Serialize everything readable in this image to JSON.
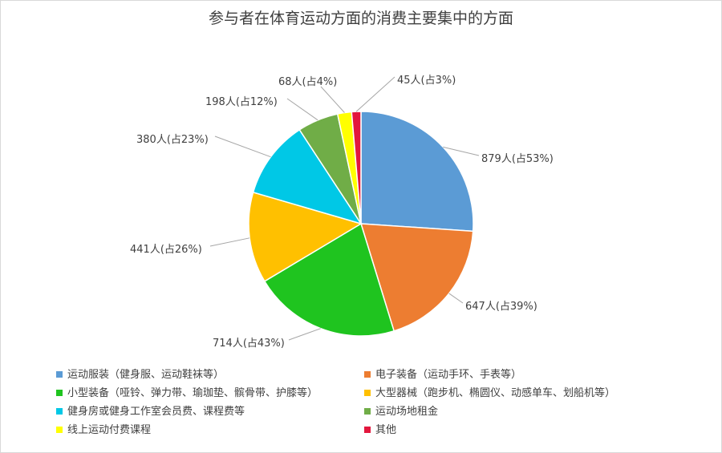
{
  "chart_data": {
    "type": "pie",
    "title": "参与者在体育运动方面的消费主要集中的方面",
    "slices": [
      {
        "name": "运动服装（健身服、运动鞋袜等）",
        "value": 879,
        "label": "879人(占53%)",
        "color": "#5b9bd5"
      },
      {
        "name": "电子装备（运动手环、手表等）",
        "value": 647,
        "label": "647人(占39%)",
        "color": "#ed7d31"
      },
      {
        "name": "小型装备（哑铃、弹力带、瑜珈垫、髌骨带、护膝等）",
        "value": 714,
        "label": "714人(占43%)",
        "color": "#1fc41f"
      },
      {
        "name": "大型器械（跑步机、椭圆仪、动感单车、划船机等）",
        "value": 441,
        "label": "441人(占26%)",
        "color": "#ffc000"
      },
      {
        "name": "健身房或健身工作室会员费、课程费等",
        "value": 380,
        "label": "380人(占23%)",
        "color": "#00c8e6"
      },
      {
        "name": "运动场地租金",
        "value": 198,
        "label": "198人(占12%)",
        "color": "#70ad47"
      },
      {
        "name": "线上运动付费课程",
        "value": 68,
        "label": "68人(占4%)",
        "color": "#ffff00"
      },
      {
        "name": "其他",
        "value": 45,
        "label": "45人(占3%)",
        "color": "#e3173d"
      }
    ],
    "legend_position": "bottom"
  }
}
